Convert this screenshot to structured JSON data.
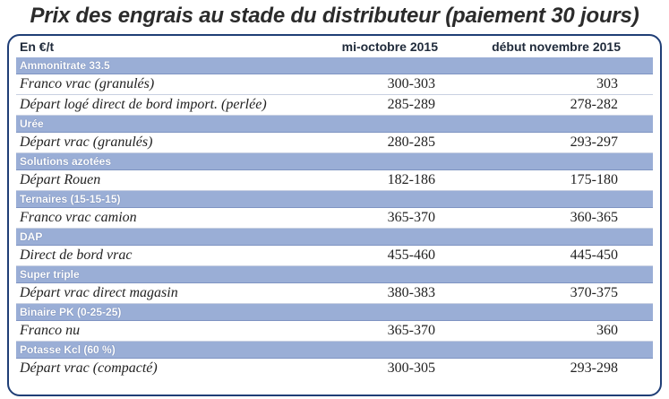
{
  "title": "Prix des engrais au stade du distributeur (paiement 30 jours)",
  "header": {
    "unit": "En €/t",
    "col1": "mi-octobre 2015",
    "col2": "début novembre 2015"
  },
  "sections": [
    {
      "name": "Ammonitrate 33.5",
      "rows": [
        {
          "label": "Franco vrac (granulés)",
          "oct": "300-303",
          "nov": "303"
        },
        {
          "label": "Départ logé direct de bord import. (perlée)",
          "oct": "285-289",
          "nov": "278-282"
        }
      ]
    },
    {
      "name": "Urée",
      "rows": [
        {
          "label": "Départ vrac (granulés)",
          "oct": "280-285",
          "nov": "293-297"
        }
      ]
    },
    {
      "name": "Solutions azotées",
      "rows": [
        {
          "label": "Départ Rouen",
          "oct": "182-186",
          "nov": "175-180"
        }
      ]
    },
    {
      "name": "Ternaires (15-15-15)",
      "rows": [
        {
          "label": "Franco vrac camion",
          "oct": "365-370",
          "nov": "360-365"
        }
      ]
    },
    {
      "name": "DAP",
      "rows": [
        {
          "label": "Direct de bord vrac",
          "oct": "455-460",
          "nov": "445-450"
        }
      ]
    },
    {
      "name": "Super triple",
      "rows": [
        {
          "label": "Départ vrac direct magasin",
          "oct": "380-383",
          "nov": "370-375"
        }
      ]
    },
    {
      "name": "Binaire PK (0-25-25)",
      "rows": [
        {
          "label": "Franco nu",
          "oct": "365-370",
          "nov": "360"
        }
      ]
    },
    {
      "name": "Potasse Kcl (60 %)",
      "rows": [
        {
          "label": "Départ vrac (compacté)",
          "oct": "300-305",
          "nov": "293-298"
        }
      ]
    }
  ],
  "colors": {
    "frame": "#1f3e76",
    "category_band": "#9aaed6",
    "row_rule": "#c9d1e2"
  }
}
